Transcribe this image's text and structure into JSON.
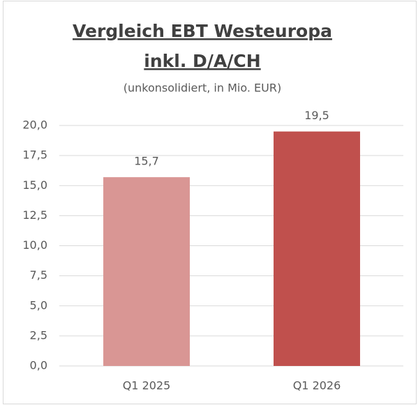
{
  "chart_data": {
    "type": "bar",
    "title": [
      "Vergleich EBT Westeuropa",
      "inkl. D/A/CH"
    ],
    "subtitle": "(unkonsolidiert, in Mio. EUR)",
    "categories": [
      "Q1 2025",
      "Q1 2026"
    ],
    "values": [
      15.7,
      19.5
    ],
    "value_labels": [
      "15,7",
      "19,5"
    ],
    "colors": [
      "#d99694",
      "#c0504d"
    ],
    "ylim": [
      0,
      20
    ],
    "yticks": [
      {
        "value": 0,
        "label": "0,0"
      },
      {
        "value": 2.5,
        "label": "2,5"
      },
      {
        "value": 5,
        "label": "5,0"
      },
      {
        "value": 7.5,
        "label": "7,5"
      },
      {
        "value": 10,
        "label": "10,0"
      },
      {
        "value": 12.5,
        "label": "12,5"
      },
      {
        "value": 15,
        "label": "15,0"
      },
      {
        "value": 17.5,
        "label": "17,5"
      },
      {
        "value": 20,
        "label": "20,0"
      }
    ],
    "grid": true
  }
}
